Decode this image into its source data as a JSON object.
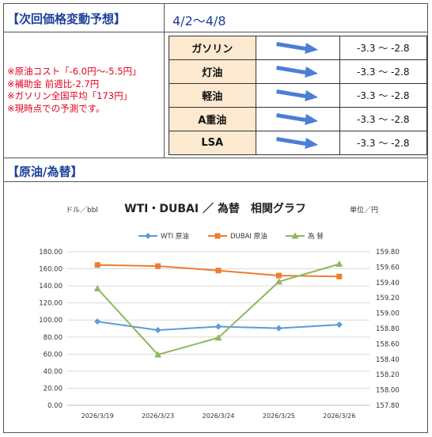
{
  "header": {
    "title": "【次回価格変動予想】",
    "period": "4/2〜4/8"
  },
  "notes": [
    "※原油コスト「-6.0円〜-5.5円」",
    "※補助金 前週比-2.7円",
    "※ガソリン全国平均「173円」",
    "※現時点での予測です。"
  ],
  "forecast": {
    "rows": [
      {
        "name": "ガソリン",
        "range": "-3.3 〜 -2.8",
        "direction": "down-right"
      },
      {
        "name": "灯油",
        "range": "-3.3 〜 -2.8",
        "direction": "down-right"
      },
      {
        "name": "軽油",
        "range": "-3.3 〜 -2.8",
        "direction": "down-right"
      },
      {
        "name": "A重油",
        "range": "-3.3 〜 -2.8",
        "direction": "down-right"
      },
      {
        "name": "LSA",
        "range": "-3.3 〜 -2.8",
        "direction": "down-right"
      }
    ],
    "arrow_color": "#4a7fd4",
    "name_bg": "#fde9d0"
  },
  "section2": {
    "title": "【原油/為替】"
  },
  "chart_data": {
    "type": "line",
    "title": "WTI・DUBAI ／ 為替　相関グラフ",
    "left_unit": "ドル／bbl",
    "right_unit": "単位／円",
    "categories": [
      "2026/3/19",
      "2026/3/23",
      "2026/3/24",
      "2026/3/25",
      "2026/3/26"
    ],
    "y_left": {
      "min": 0,
      "max": 180,
      "step": 20,
      "ticks": [
        "0.00",
        "20.00",
        "40.00",
        "60.00",
        "80.00",
        "100.00",
        "120.00",
        "140.00",
        "160.00",
        "180.00"
      ]
    },
    "y_right": {
      "min": 157.8,
      "max": 159.8,
      "step": 0.2,
      "ticks": [
        "157.80",
        "158.00",
        "158.20",
        "158.40",
        "158.60",
        "158.80",
        "159.00",
        "159.20",
        "159.40",
        "159.60",
        "159.80"
      ]
    },
    "series": [
      {
        "name": "WTI 原油",
        "axis": "left",
        "marker": "diamond",
        "color": "#5b9bd5",
        "values": [
          98.2,
          88.1,
          92.3,
          90.3,
          94.5
        ]
      },
      {
        "name": "DUBAI 原油",
        "axis": "left",
        "marker": "square",
        "color": "#ed7d31",
        "values": [
          164.5,
          163.2,
          158.0,
          152.1,
          151.0
        ]
      },
      {
        "name": "為 替",
        "axis": "right",
        "marker": "triangle",
        "color": "#8fb860",
        "values": [
          159.32,
          158.46,
          158.68,
          159.41,
          159.64
        ]
      }
    ],
    "grid": true,
    "legend": "top"
  }
}
